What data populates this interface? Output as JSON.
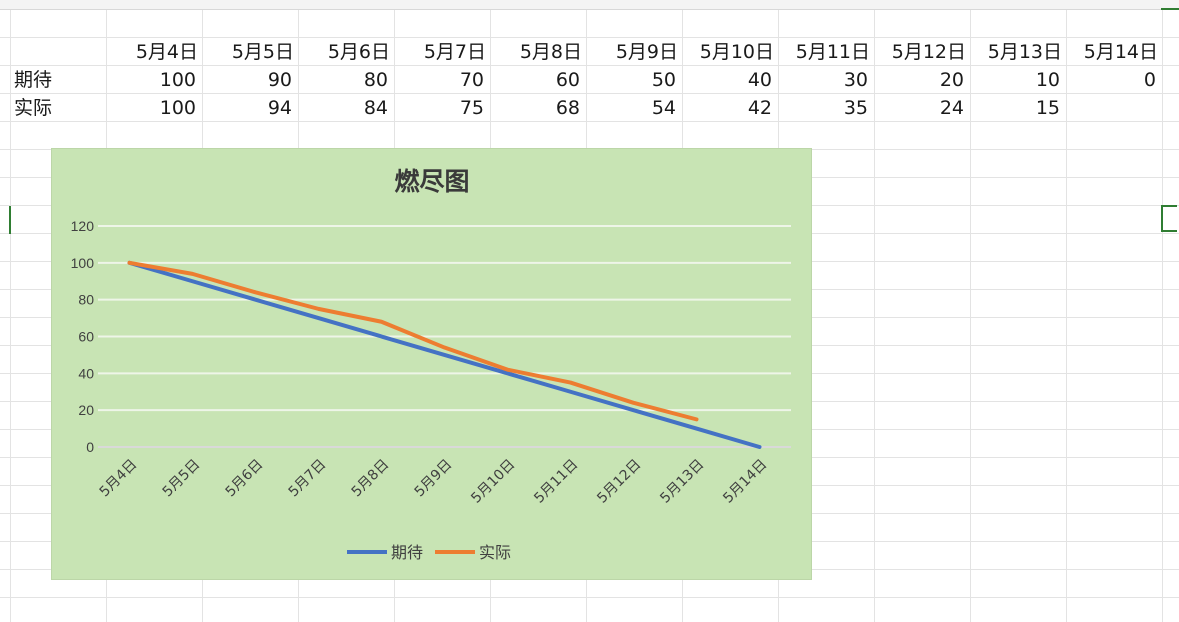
{
  "sheet": {
    "row_labels": [
      "期待",
      "实际"
    ],
    "dates": [
      "5月4日",
      "5月5日",
      "5月6日",
      "5月7日",
      "5月8日",
      "5月9日",
      "5月10日",
      "5月11日",
      "5月12日",
      "5月13日",
      "5月14日"
    ],
    "expected": [
      "100",
      "90",
      "80",
      "70",
      "60",
      "50",
      "40",
      "30",
      "20",
      "10",
      "0"
    ],
    "actual": [
      "100",
      "94",
      "84",
      "75",
      "68",
      "54",
      "42",
      "35",
      "24",
      "15",
      ""
    ]
  },
  "chart_data": {
    "type": "line",
    "title": "燃尽图",
    "categories": [
      "5月4日",
      "5月5日",
      "5月6日",
      "5月7日",
      "5月8日",
      "5月9日",
      "5月10日",
      "5月11日",
      "5月12日",
      "5月13日",
      "5月14日"
    ],
    "series": [
      {
        "name": "期待",
        "color": "#4472c4",
        "values": [
          100,
          90,
          80,
          70,
          60,
          50,
          40,
          30,
          20,
          10,
          0
        ]
      },
      {
        "name": "实际",
        "color": "#ed7d31",
        "values": [
          100,
          94,
          84,
          75,
          68,
          54,
          42,
          35,
          24,
          15,
          null
        ]
      }
    ],
    "ylim": [
      0,
      120
    ],
    "yticks": [
      "0",
      "20",
      "40",
      "60",
      "80",
      "100",
      "120"
    ],
    "grid": true,
    "legend": "bottom",
    "background": "#c8e4b4"
  }
}
